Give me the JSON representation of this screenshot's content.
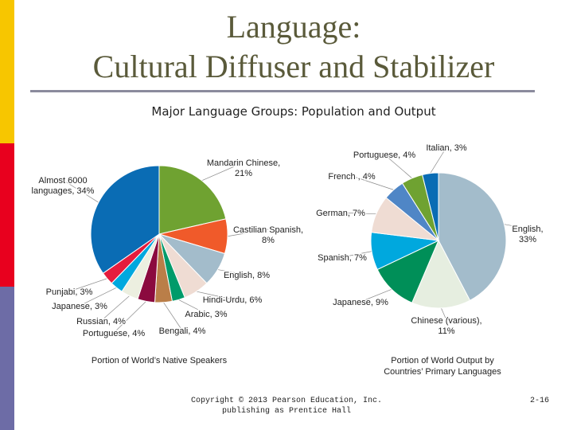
{
  "slide": {
    "title_line1": "Language:",
    "title_line2": "Cultural Diffuser and Stabilizer",
    "subtitle": "Major Language Groups: Population and Output",
    "copyright_line1": "Copyright © 2013 Pearson Education, Inc.",
    "copyright_line2": "publishing as Prentice Hall",
    "page_number": "2-16"
  },
  "chart_data": [
    {
      "type": "pie",
      "title": "",
      "caption": "Portion of World’s Native Speakers",
      "slices": [
        {
          "label": [
            "Mandarin Chinese,",
            "21%"
          ],
          "value": 21,
          "color": "#6fa231"
        },
        {
          "label": [
            "Castilian Spanish,",
            "8%"
          ],
          "value": 8,
          "color": "#f05a2a"
        },
        {
          "label": [
            "English, 8%"
          ],
          "value": 8,
          "color": "#a3bccb"
        },
        {
          "label": [
            "Hindi-Urdu, 6%"
          ],
          "value": 6,
          "color": "#efdcd3"
        },
        {
          "label": [
            "Arabic, 3%"
          ],
          "value": 3,
          "color": "#009b6a"
        },
        {
          "label": [
            "Bengali, 4%"
          ],
          "value": 4,
          "color": "#ba7e48"
        },
        {
          "label": [
            "Portuguese, 4%"
          ],
          "value": 4,
          "color": "#8b0a3f"
        },
        {
          "label": [
            "Russian, 4%"
          ],
          "value": 4,
          "color": "#ecefe0"
        },
        {
          "label": [
            "Japanese, 3%"
          ],
          "value": 3,
          "color": "#00a8de"
        },
        {
          "label": [
            "Punjabi, 3%"
          ],
          "value": 3,
          "color": "#e51c3d"
        },
        {
          "label": [
            "Almost 6000",
            "languages, 34%"
          ],
          "value": 34,
          "color": "#0a6cb4"
        }
      ]
    },
    {
      "type": "pie",
      "title": "",
      "caption": [
        "Portion of World Output by",
        "Countries’ Primary Languages"
      ],
      "slices": [
        {
          "label": [
            "English,",
            "33%"
          ],
          "value": 33,
          "color": "#a3bccb"
        },
        {
          "label": [
            "Chinese (various),",
            "11%"
          ],
          "value": 11,
          "color": "#e6eee0"
        },
        {
          "label": [
            "Japanese, 9%"
          ],
          "value": 9,
          "color": "#008f58"
        },
        {
          "label": [
            "Spanish, 7%"
          ],
          "value": 7,
          "color": "#00a8de"
        },
        {
          "label": [
            "German, 7%"
          ],
          "value": 7,
          "color": "#efdcd3"
        },
        {
          "label": [
            "French , 4%"
          ],
          "value": 4,
          "color": "#4f86c6"
        },
        {
          "label": [
            "Portuguese, 4%"
          ],
          "value": 4,
          "color": "#6fa231"
        },
        {
          "label": [
            "Italian, 3%"
          ],
          "value": 3,
          "color": "#0a6cb4"
        }
      ]
    }
  ]
}
